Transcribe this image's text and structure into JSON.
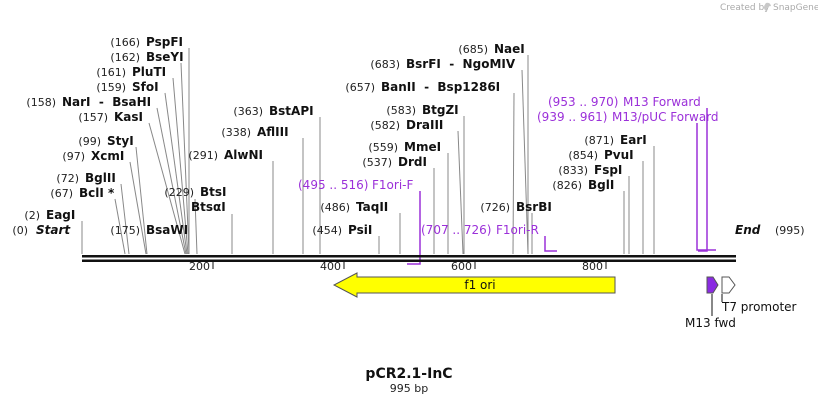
{
  "credit": {
    "prefix": "Created by",
    "brand": "SnapGene"
  },
  "title": "pCR2.1-InC",
  "subtitle": "995 bp",
  "ends": {
    "start": {
      "pos": "(0)",
      "name": "Start"
    },
    "end": {
      "pos": "(995)",
      "name": "End"
    }
  },
  "scale_ticks": [
    "200",
    "400",
    "600",
    "800"
  ],
  "sites_left": [
    {
      "pos": "(166)",
      "name": "PspFI"
    },
    {
      "pos": "(162)",
      "name": "BseYI"
    },
    {
      "pos": "(161)",
      "name": "PluTI"
    },
    {
      "pos": "(159)",
      "name": "SfoI"
    },
    {
      "pos": "(158)",
      "name": "NarI  -  BsaHI"
    },
    {
      "pos": "(157)",
      "name": "KasI"
    },
    {
      "pos": "(99)",
      "name": "StyI"
    },
    {
      "pos": "(97)",
      "name": "XcmI"
    },
    {
      "pos": "(72)",
      "name": "BglII"
    },
    {
      "pos": "(67)",
      "name": "BclI *"
    },
    {
      "pos": "(2)",
      "name": "EagI"
    },
    {
      "pos": "(175)",
      "name": "BsaWI"
    },
    {
      "pos": "(229)",
      "name": "BtsI"
    },
    {
      "pos": "",
      "name": "BtsαI"
    },
    {
      "pos": "(363)",
      "name": "BstAPI"
    },
    {
      "pos": "(338)",
      "name": "AflIII"
    },
    {
      "pos": "(291)",
      "name": "AlwNI"
    }
  ],
  "sites_mid": [
    {
      "pos": "(685)",
      "name": "NaeI"
    },
    {
      "pos": "(683)",
      "name": "BsrFI  -  NgoMIV"
    },
    {
      "pos": "(657)",
      "name": "BanII  -  Bsp1286I"
    },
    {
      "pos": "(583)",
      "name": "BtgZI"
    },
    {
      "pos": "(582)",
      "name": "DraIII"
    },
    {
      "pos": "(559)",
      "name": "MmeI"
    },
    {
      "pos": "(537)",
      "name": "DrdI"
    },
    {
      "pos": "(486)",
      "name": "TaqII"
    },
    {
      "pos": "(454)",
      "name": "PsiI"
    },
    {
      "pos": "(726)",
      "name": "BsrBI"
    }
  ],
  "sites_right": [
    {
      "pos": "(871)",
      "name": "EarI"
    },
    {
      "pos": "(854)",
      "name": "PvuI"
    },
    {
      "pos": "(833)",
      "name": "FspI"
    },
    {
      "pos": "(826)",
      "name": "BglI"
    }
  ],
  "primers": [
    {
      "range": "(953 .. 970)",
      "name": "M13 Forward"
    },
    {
      "range": "(939 .. 961)",
      "name": "M13/pUC Forward"
    },
    {
      "range": "(495 .. 516)",
      "name": "F1ori-F"
    },
    {
      "range": "(707 .. 726)",
      "name": "F1ori-R"
    }
  ],
  "features": {
    "f1_ori": "f1 ori",
    "m13_fwd": "M13 fwd",
    "t7_promoter": "T7 promoter"
  },
  "colors": {
    "primer": "#9b30d9",
    "f1_ori_fill": "#ffff00",
    "m13_fill": "#8a2be2",
    "backbone": "#111111"
  }
}
